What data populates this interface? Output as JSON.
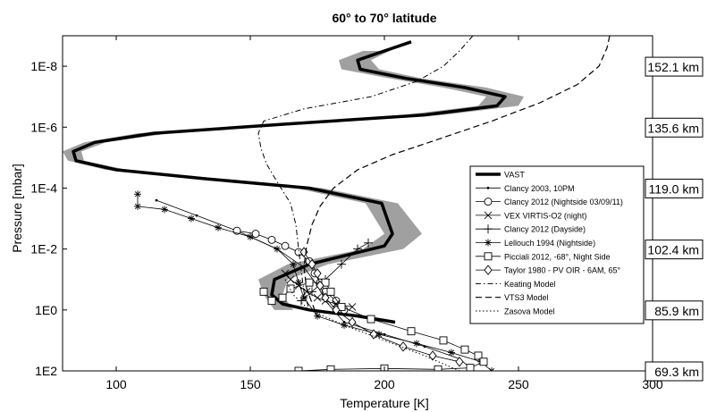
{
  "chart_data": {
    "type": "line",
    "title": "60° to 70° latitude",
    "xlabel": "Temperature [K]",
    "ylabel": "Pressure [mbar]",
    "xlim": [
      80,
      300
    ],
    "ylim_log10": [
      -9,
      2
    ],
    "y_scale": "log",
    "y_reversed": true,
    "grid": false,
    "x_ticks": [
      {
        "v": 100,
        "label": "100"
      },
      {
        "v": 150,
        "label": "150"
      },
      {
        "v": 200,
        "label": "200"
      },
      {
        "v": 250,
        "label": "250"
      },
      {
        "v": 300,
        "label": "300"
      }
    ],
    "y_ticks": [
      {
        "log": -8,
        "label": "1E-8"
      },
      {
        "log": -6,
        "label": "1E-6"
      },
      {
        "log": -4,
        "label": "1E-4"
      },
      {
        "log": -2,
        "label": "1E-2"
      },
      {
        "log": 0,
        "label": "1E0"
      },
      {
        "log": 2,
        "label": "1E2"
      }
    ],
    "altitude_labels": [
      {
        "log": -8,
        "label": "152.1 km"
      },
      {
        "log": -6,
        "label": "135.6 km"
      },
      {
        "log": -4,
        "label": "119.0 km"
      },
      {
        "log": -2,
        "label": "102.4 km"
      },
      {
        "log": 0,
        "label": "85.9 km"
      },
      {
        "log": 2,
        "label": "69.3 km"
      }
    ],
    "legend_position": "right",
    "vast_band": {
      "upper_T": [
        202,
        195,
        198,
        214,
        238,
        252,
        250,
        222,
        170,
        120,
        96,
        87,
        88,
        104,
        140,
        177,
        205,
        214,
        207,
        179,
        164,
        162,
        166
      ],
      "lower_T": [
        192,
        183,
        184,
        202,
        222,
        238,
        235,
        207,
        156,
        108,
        88,
        80,
        82,
        96,
        129,
        167,
        193,
        200,
        192,
        164,
        153,
        155,
        159
      ],
      "log_p": [
        -8.5,
        -8.2,
        -7.9,
        -7.6,
        -7.3,
        -7.0,
        -6.7,
        -6.4,
        -6.1,
        -5.8,
        -5.5,
        -5.2,
        -4.9,
        -4.6,
        -4.3,
        -4.0,
        -3.5,
        -2.5,
        -2.0,
        -1.5,
        -1.0,
        -0.5,
        0.0
      ]
    },
    "series": [
      {
        "name": "VAST",
        "style": "thick-solid",
        "points": [
          [
            210,
            -8.8
          ],
          [
            200,
            -8.5
          ],
          [
            190,
            -8.2
          ],
          [
            191,
            -7.9
          ],
          [
            208,
            -7.6
          ],
          [
            230,
            -7.3
          ],
          [
            245,
            -7.0
          ],
          [
            242,
            -6.7
          ],
          [
            215,
            -6.4
          ],
          [
            163,
            -6.1
          ],
          [
            114,
            -5.8
          ],
          [
            92,
            -5.5
          ],
          [
            84,
            -5.2
          ],
          [
            85,
            -4.9
          ],
          [
            100,
            -4.6
          ],
          [
            134,
            -4.3
          ],
          [
            172,
            -4.0
          ],
          [
            199,
            -3.5
          ],
          [
            203,
            -2.5
          ],
          [
            200,
            -2.1
          ],
          [
            172,
            -1.5
          ],
          [
            159,
            -1.0
          ],
          [
            158,
            -0.5
          ],
          [
            162,
            -0.2
          ],
          [
            172,
            0.0
          ],
          [
            190,
            0.2
          ],
          [
            204,
            0.4
          ]
        ]
      },
      {
        "name": "Clancy 2003, 10PM",
        "style": "dot-marker",
        "points": [
          [
            115,
            -3.6
          ],
          [
            130,
            -3.1
          ],
          [
            145,
            -2.6
          ],
          [
            160,
            -2.0
          ],
          [
            170,
            -1.4
          ],
          [
            175,
            -0.8
          ],
          [
            178,
            -0.3
          ],
          [
            185,
            0.4
          ],
          [
            200,
            0.8
          ],
          [
            215,
            1.2
          ],
          [
            228,
            1.6
          ],
          [
            232,
            1.9
          ]
        ]
      },
      {
        "name": "Clancy 2012 (Nightside 03/09/11)",
        "style": "circle-marker",
        "points": [
          [
            145,
            -2.6
          ],
          [
            152,
            -2.5
          ],
          [
            158,
            -2.3
          ],
          [
            163,
            -2.1
          ],
          [
            168,
            -1.9
          ],
          [
            172,
            -1.6
          ],
          [
            174,
            -1.2
          ],
          [
            176,
            -0.9
          ],
          [
            178,
            -0.6
          ],
          [
            182,
            -0.3
          ],
          [
            185,
            0.0
          ]
        ]
      },
      {
        "name": "VEX VIRTIS-O2 (night)",
        "style": "x-marker",
        "points": [
          [
            163,
            -1.2
          ],
          [
            165,
            -1.0
          ],
          [
            168,
            -0.8
          ],
          [
            171,
            -0.6
          ],
          [
            175,
            -0.4
          ],
          [
            178,
            -0.3
          ],
          [
            182,
            -0.2
          ],
          [
            188,
            -0.1
          ]
        ]
      },
      {
        "name": "Clancy 2012 (Dayside)",
        "style": "plus-marker",
        "points": [
          [
            169,
            -0.3
          ],
          [
            173,
            -0.6
          ],
          [
            178,
            -1.0
          ],
          [
            184,
            -1.5
          ],
          [
            190,
            -2.0
          ],
          [
            194,
            -2.2
          ]
        ]
      },
      {
        "name": "Lellouch 1994 (Nightside)",
        "style": "asterisk-marker",
        "points": [
          [
            108,
            -3.8
          ],
          [
            108,
            -3.4
          ],
          [
            118,
            -3.3
          ],
          [
            128,
            -3.0
          ],
          [
            138,
            -2.7
          ],
          [
            150,
            -2.4
          ],
          [
            160,
            -2.0
          ],
          [
            166,
            -1.5
          ],
          [
            168,
            -0.9
          ],
          [
            170,
            -0.4
          ],
          [
            175,
            0.2
          ],
          [
            185,
            0.5
          ],
          [
            198,
            0.8
          ],
          [
            212,
            1.1
          ],
          [
            225,
            1.4
          ],
          [
            236,
            1.7
          ],
          [
            240,
            2.0
          ]
        ]
      },
      {
        "name": "Picciali 2012, -68°, Night Side",
        "style": "square-marker",
        "points": [
          [
            155,
            -0.6
          ],
          [
            158,
            -0.3
          ],
          [
            162,
            -0.4
          ],
          [
            165,
            -0.7
          ],
          [
            172,
            -0.9
          ],
          [
            178,
            -0.9
          ],
          [
            180,
            -0.6
          ],
          [
            184,
            -0.1
          ],
          [
            195,
            0.3
          ],
          [
            210,
            0.7
          ],
          [
            222,
            1.0
          ],
          [
            230,
            1.3
          ],
          [
            235,
            1.5
          ],
          [
            237,
            1.7
          ],
          [
            232,
            1.9
          ],
          [
            220,
            1.95
          ],
          [
            200,
            1.92
          ],
          [
            180,
            1.95
          ],
          [
            168,
            2.0
          ]
        ]
      },
      {
        "name": "Taylor 1980 - PV OIR - 6AM, 65°",
        "style": "diamond-marker",
        "points": [
          [
            170,
            -1.9
          ],
          [
            173,
            -1.5
          ],
          [
            175,
            -1.2
          ],
          [
            176,
            -0.8
          ],
          [
            178,
            -0.4
          ],
          [
            182,
            0.0
          ],
          [
            188,
            0.4
          ],
          [
            196,
            0.8
          ],
          [
            207,
            1.2
          ],
          [
            218,
            1.5
          ],
          [
            228,
            1.7
          ]
        ]
      },
      {
        "name": "Keating Model",
        "style": "dash-dot",
        "points": [
          [
            233,
            -9.0
          ],
          [
            228,
            -8.5
          ],
          [
            222,
            -8.0
          ],
          [
            212,
            -7.5
          ],
          [
            195,
            -7.0
          ],
          [
            170,
            -6.6
          ],
          [
            155,
            -6.2
          ],
          [
            153,
            -5.8
          ],
          [
            154,
            -5.3
          ],
          [
            156,
            -4.8
          ],
          [
            160,
            -4.2
          ],
          [
            165,
            -3.5
          ],
          [
            167,
            -2.8
          ],
          [
            168,
            -2.0
          ],
          [
            169,
            -1.3
          ],
          [
            170,
            -0.6
          ],
          [
            172,
            0.0
          ]
        ]
      },
      {
        "name": "VTS3 Model",
        "style": "dashed",
        "points": [
          [
            284,
            -9.0
          ],
          [
            283,
            -8.6
          ],
          [
            280,
            -8.0
          ],
          [
            272,
            -7.4
          ],
          [
            258,
            -6.8
          ],
          [
            240,
            -6.2
          ],
          [
            220,
            -5.6
          ],
          [
            203,
            -5.1
          ],
          [
            190,
            -4.6
          ],
          [
            181,
            -4.0
          ],
          [
            176,
            -3.4
          ],
          [
            173,
            -2.8
          ],
          [
            171,
            -2.1
          ],
          [
            170,
            -1.4
          ],
          [
            171,
            -0.7
          ],
          [
            174,
            0.0
          ]
        ]
      },
      {
        "name": "Zasova Model",
        "style": "dotted",
        "points": [
          [
            163,
            -1.0
          ],
          [
            166,
            -0.5
          ],
          [
            172,
            0.0
          ],
          [
            185,
            0.5
          ],
          [
            200,
            1.0
          ],
          [
            215,
            1.5
          ],
          [
            228,
            2.0
          ]
        ]
      }
    ],
    "legend_entries": [
      {
        "label": "VAST",
        "style": "thick-solid"
      },
      {
        "label": "Clancy 2003, 10PM",
        "style": "dot-marker"
      },
      {
        "label": "Clancy 2012 (Nightside 03/09/11)",
        "style": "circle-marker"
      },
      {
        "label": "VEX VIRTIS-O2 (night)",
        "style": "x-marker"
      },
      {
        "label": "Clancy 2012 (Dayside)",
        "style": "plus-marker"
      },
      {
        "label": "Lellouch 1994 (Nightside)",
        "style": "asterisk-marker"
      },
      {
        "label": "Picciali 2012, -68°, Night Side",
        "style": "square-marker"
      },
      {
        "label": "Taylor 1980 - PV OIR - 6AM, 65°",
        "style": "diamond-marker"
      },
      {
        "label": "Keating Model",
        "style": "dash-dot"
      },
      {
        "label": "VTS3 Model",
        "style": "dashed"
      },
      {
        "label": "Zasova Model",
        "style": "dotted"
      }
    ]
  }
}
